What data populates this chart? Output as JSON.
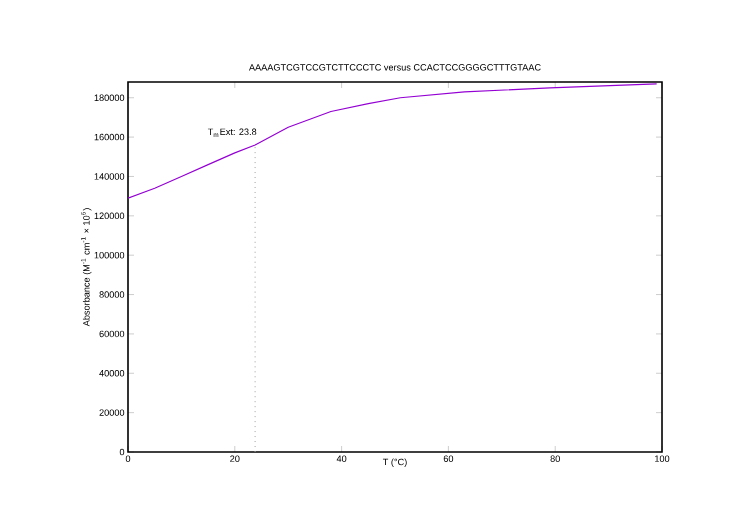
{
  "chart_data": {
    "type": "line",
    "title": "AAAAGTCGTCCGTCTTCCCTC versus CCACTCCGGGGCTTTGTAAC",
    "xlabel": "T (°C)",
    "ylabel": "Absorbance (M$^{-1}$ cm$^{-1}$ × 10$^{6}$)",
    "x": [
      0,
      5,
      10,
      15,
      20,
      23.8,
      30,
      38,
      45,
      51,
      63,
      79,
      99
    ],
    "series": [
      {
        "color": "#9400d3",
        "values": [
          129000,
          134000,
          140000,
          146000,
          152000,
          156000,
          165000,
          173000,
          177000,
          180000,
          183000,
          185000,
          187000
        ]
      }
    ],
    "xlim": [
      0,
      100
    ],
    "ylim": [
      0,
      188000
    ],
    "xticks": [
      0,
      20,
      40,
      60,
      80,
      100
    ],
    "yticks": [
      0,
      20000,
      40000,
      60000,
      80000,
      100000,
      120000,
      140000,
      160000,
      180000
    ],
    "ref_lines": [
      {
        "axis": "x",
        "value": 23.8,
        "label": "T$_{m}$Ext: 23.8",
        "line_style": "dotted",
        "color": "#a0a0a0"
      }
    ],
    "grid": false,
    "marker": "none",
    "line_style": "solid"
  }
}
